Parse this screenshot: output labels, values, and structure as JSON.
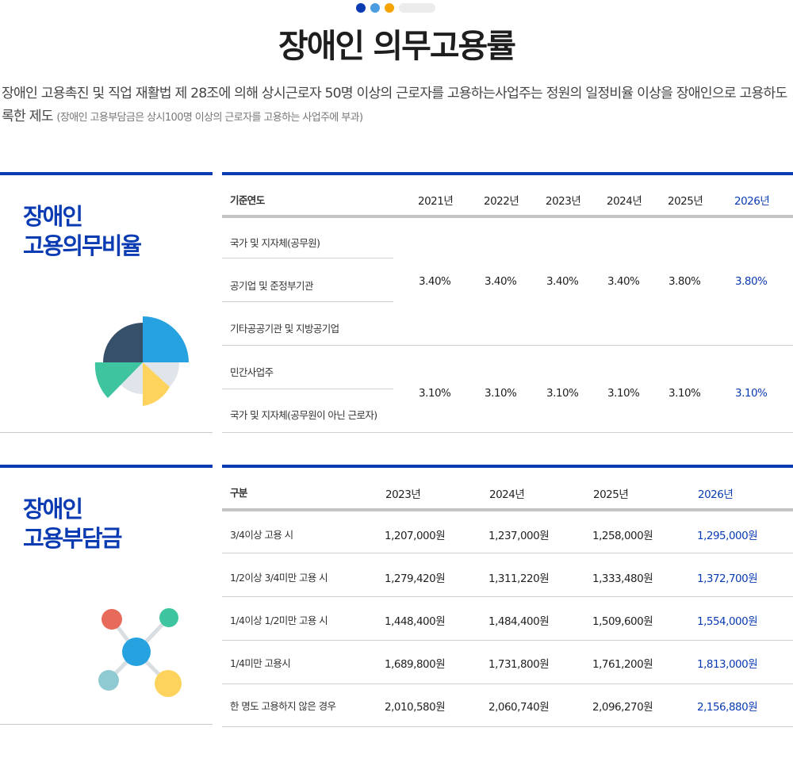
{
  "header": {
    "dots": [
      "#0a3bb3",
      "#4a9de0",
      "#f5a300"
    ],
    "title": "장애인 의무고용률"
  },
  "intro": {
    "text": "장애인 고용촉진 및 직업 재활법 제 28조에 의해 상시근로자 50명 이상의 근로자를 고용하는사업주는 정원의 일정비율 이상을 장애인으로 고용하도록한 제도",
    "note": "(장애인 고용부담금은 상시100명 이상의 근로자를 고용하는 사업주에 부과)"
  },
  "colors": {
    "accent": "#0a3bb3",
    "highlight": "#0a3bb3"
  },
  "section1": {
    "title": "장애인\n고용의무비율",
    "icon": "pie-chart-icon",
    "header": [
      "기준연도",
      "2021년",
      "2022년",
      "2023년",
      "2024년",
      "2025년",
      "2026년"
    ],
    "group1": {
      "labels": [
        "국가 및 지자체(공무원)",
        "공기업 및 준정부기관",
        "기타공공기관 및 지방공기업"
      ],
      "values": [
        "3.40%",
        "3.40%",
        "3.40%",
        "3.40%",
        "3.80%",
        "3.80%"
      ]
    },
    "group2": {
      "labels": [
        "민간사업주",
        "국가 및 지자체(공무원이 아닌 근로자)"
      ],
      "values": [
        "3.10%",
        "3.10%",
        "3.10%",
        "3.10%",
        "3.10%",
        "3.10%"
      ]
    }
  },
  "section2": {
    "title": "장애인\n고용부담금",
    "icon": "molecule-network-icon",
    "header": [
      "구분",
      "2023년",
      "2024년",
      "2025년",
      "2026년"
    ],
    "rows": [
      [
        "3/4이상 고용 시",
        "1,207,000원",
        "1,237,000원",
        "1,258,000원",
        "1,295,000원"
      ],
      [
        "1/2이상 3/4미만 고용 시",
        "1,279,420원",
        "1,311,220원",
        "1,333,480원",
        "1,372,700원"
      ],
      [
        "1/4이상 1/2미만 고용 시",
        "1,448,400원",
        "1,484,400원",
        "1,509,600원",
        "1,554,000원"
      ],
      [
        "1/4미만 고용시",
        "1,689,800원",
        "1,731,800원",
        "1,761,200원",
        "1,813,000원"
      ],
      [
        "한 명도 고용하지 않은 경우",
        "2,010,580원",
        "2,060,740원",
        "2,096,270원",
        "2,156,880원"
      ]
    ]
  }
}
